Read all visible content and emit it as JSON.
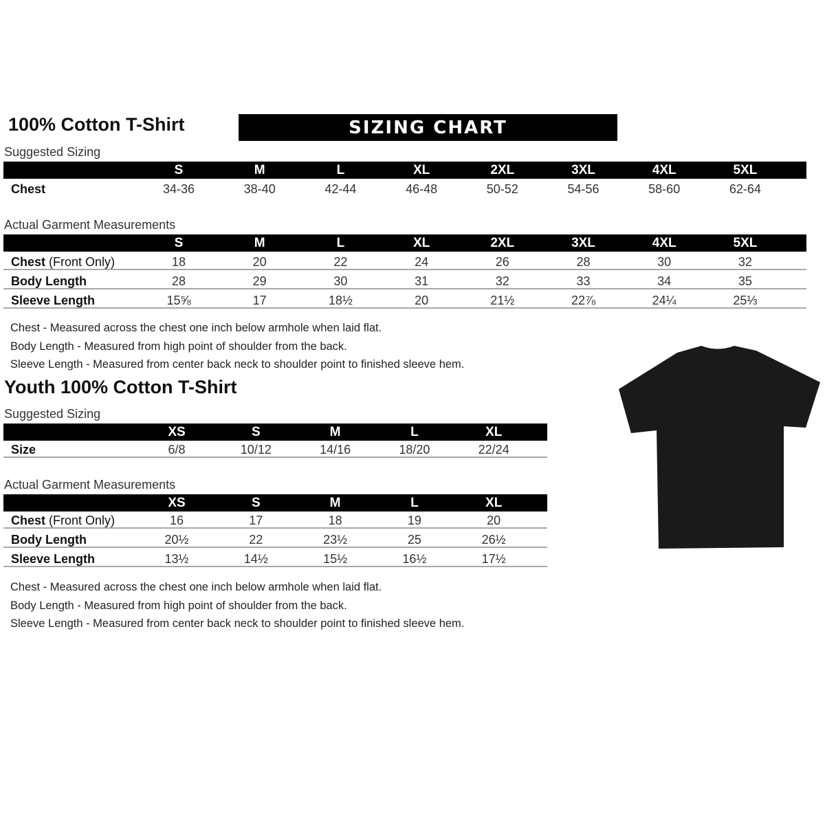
{
  "adult": {
    "title": "100% Cotton T-Shirt",
    "banner": "SIZING CHART",
    "suggested": {
      "label": "Suggested Sizing",
      "sizes": [
        "S",
        "M",
        "L",
        "XL",
        "2XL",
        "3XL",
        "4XL",
        "5XL"
      ],
      "rows": [
        {
          "label": "Chest",
          "label_light": "",
          "values": [
            "34-36",
            "38-40",
            "42-44",
            "46-48",
            "50-52",
            "54-56",
            "58-60",
            "62-64"
          ]
        }
      ]
    },
    "actual": {
      "label": "Actual Garment Measurements",
      "sizes": [
        "S",
        "M",
        "L",
        "XL",
        "2XL",
        "3XL",
        "4XL",
        "5XL"
      ],
      "rows": [
        {
          "label": "Chest",
          "label_light": " (Front Only)",
          "values": [
            "18",
            "20",
            "22",
            "24",
            "26",
            "28",
            "30",
            "32"
          ]
        },
        {
          "label": "Body Length",
          "label_light": "",
          "values": [
            "28",
            "29",
            "30",
            "31",
            "32",
            "33",
            "34",
            "35"
          ]
        },
        {
          "label": "Sleeve Length",
          "label_light": "",
          "values": [
            "15⅝",
            "17",
            "18½",
            "20",
            "21½",
            "22⅞",
            "24¼",
            "25⅓"
          ]
        }
      ]
    },
    "notes": [
      "Chest - Measured across the chest one inch below armhole when laid flat.",
      "Body Length - Measured from high point of shoulder from the back.",
      "Sleeve Length - Measured from center back neck to shoulder point to finished sleeve hem."
    ]
  },
  "youth": {
    "title": "Youth 100% Cotton T-Shirt",
    "suggested": {
      "label": "Suggested Sizing",
      "sizes": [
        "XS",
        "S",
        "M",
        "L",
        "XL"
      ],
      "rows": [
        {
          "label": "Size",
          "label_light": "",
          "values": [
            "6/8",
            "10/12",
            "14/16",
            "18/20",
            "22/24"
          ]
        }
      ]
    },
    "actual": {
      "label": "Actual Garment Measurements",
      "sizes": [
        "XS",
        "S",
        "M",
        "L",
        "XL"
      ],
      "rows": [
        {
          "label": "Chest",
          "label_light": " (Front Only)",
          "values": [
            "16",
            "17",
            "18",
            "19",
            "20"
          ]
        },
        {
          "label": "Body Length",
          "label_light": "",
          "values": [
            "20½",
            "22",
            "23½",
            "25",
            "26½"
          ]
        },
        {
          "label": "Sleeve Length",
          "label_light": "",
          "values": [
            "13½",
            "14½",
            "15½",
            "16½",
            "17½"
          ]
        }
      ]
    },
    "notes": [
      "Chest - Measured across the chest one inch below armhole when laid flat.",
      "Body Length - Measured from high point of shoulder from the back.",
      "Sleeve Length - Measured from center back neck to shoulder point to finished sleeve hem."
    ]
  },
  "image": {
    "icon": "black-tshirt",
    "color": "#1a1a1a"
  }
}
